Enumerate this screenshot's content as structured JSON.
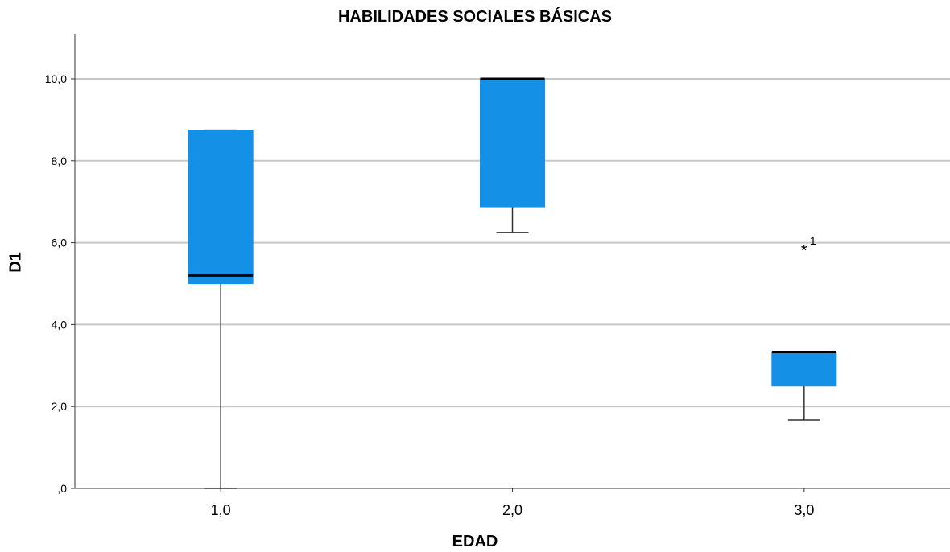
{
  "chart_data": {
    "type": "boxplot",
    "title": "HABILIDADES SOCIALES BÁSICAS",
    "xlabel": "EDAD",
    "ylabel": "D1",
    "ylim": [
      0,
      11.1
    ],
    "y_ticks": [
      0,
      2,
      4,
      6,
      8,
      10
    ],
    "y_tick_labels": [
      ",0",
      "2,0",
      "4,0",
      "6,0",
      "8,0",
      "10,0"
    ],
    "grid": "horizontal",
    "box_color": "#1490e6",
    "categories": [
      "1,0",
      "2,0",
      "3,0"
    ],
    "boxes": [
      {
        "category": "1,0",
        "min": 0.0,
        "q1": 5.0,
        "median": 5.2,
        "q3": 8.75,
        "max": 8.75,
        "outliers": []
      },
      {
        "category": "2,0",
        "min": 6.25,
        "q1": 6.875,
        "median": 10.0,
        "q3": 10.0,
        "max": 10.0,
        "outliers": []
      },
      {
        "category": "3,0",
        "min": 1.67,
        "q1": 2.5,
        "median": 3.33,
        "q3": 3.33,
        "max": 3.33,
        "outliers": [
          {
            "value": 5.83,
            "label": "1",
            "marker": "*"
          }
        ]
      }
    ]
  }
}
